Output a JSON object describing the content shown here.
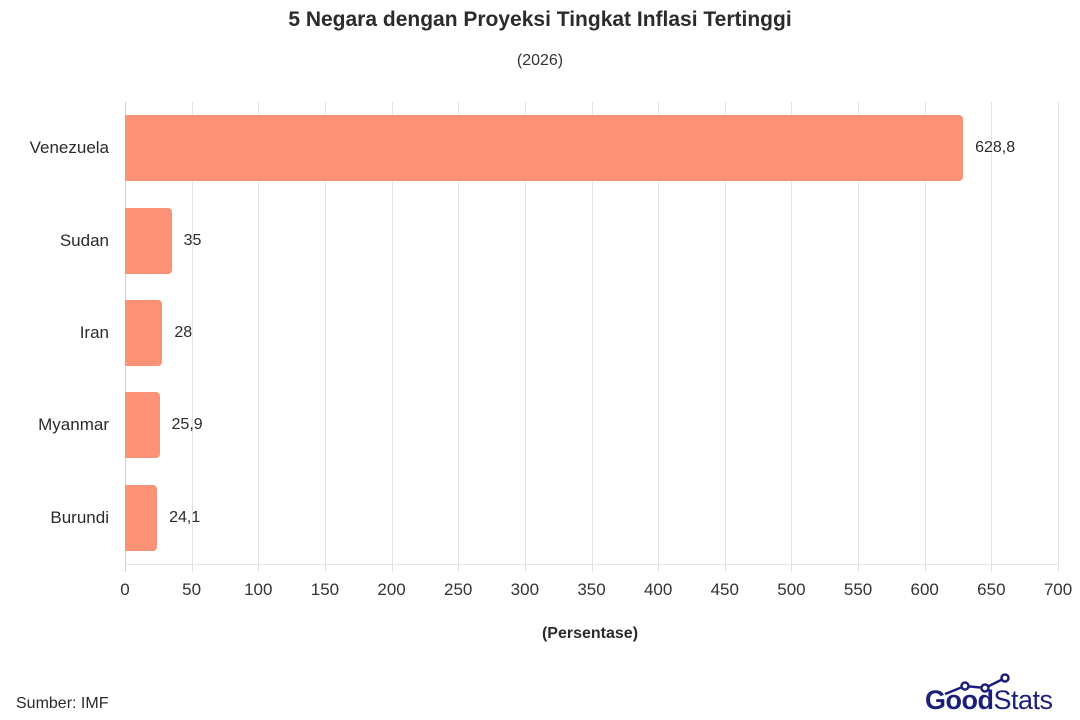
{
  "header": {
    "title": "5 Negara dengan Proyeksi Tingkat Inflasi Tertinggi",
    "subtitle": "(2026)"
  },
  "footer": {
    "source": "Sumber: IMF",
    "logo_bold": "Good",
    "logo_light": "Stats"
  },
  "style": {
    "bar_color": "#FB9278",
    "logo_color": "#1C1F7A"
  },
  "chart_data": {
    "type": "bar",
    "orientation": "horizontal",
    "title": "5 Negara dengan Proyeksi Tingkat Inflasi Tertinggi",
    "subtitle": "(2026)",
    "categories": [
      "Venezuela",
      "Sudan",
      "Iran",
      "Myanmar",
      "Burundi"
    ],
    "values": [
      628.8,
      35,
      28,
      25.9,
      24.1
    ],
    "value_labels": [
      "628,8",
      "35",
      "28",
      "25,9",
      "24,1"
    ],
    "xlabel": "(Persentase)",
    "ylabel": "",
    "xlim": [
      0,
      700
    ],
    "xticks": [
      "0",
      "50",
      "100",
      "150",
      "200",
      "250",
      "300",
      "350",
      "400",
      "450",
      "500",
      "550",
      "600",
      "650",
      "700"
    ],
    "grid": true,
    "legend": "none",
    "source": "Sumber: IMF"
  }
}
